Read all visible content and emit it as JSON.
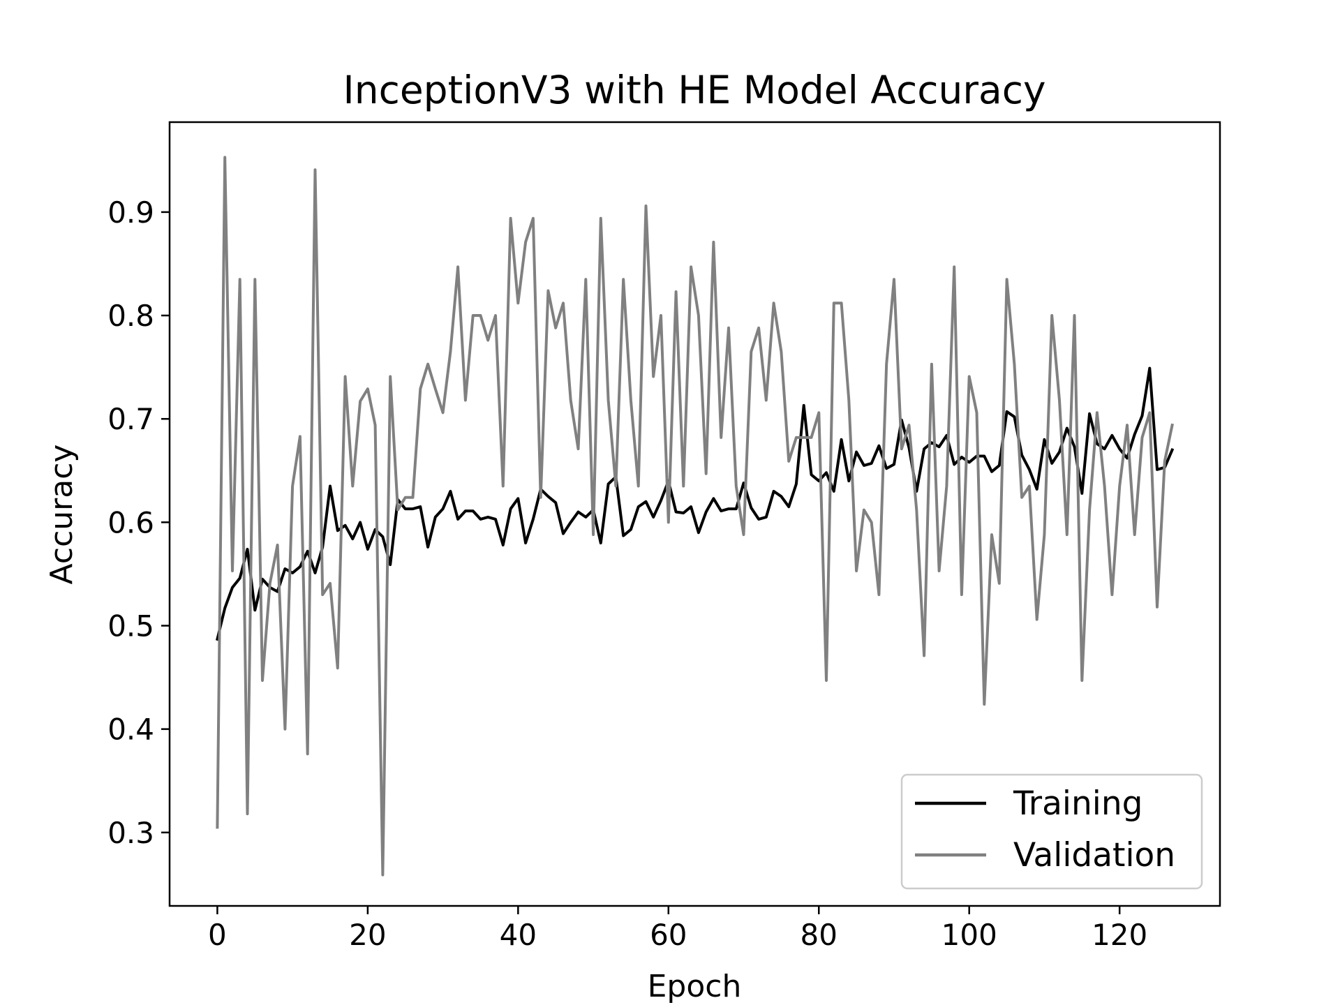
{
  "chart_data": {
    "type": "line",
    "title": "InceptionV3 with HE Model Accuracy",
    "xlabel": "Epoch",
    "ylabel": "Accuracy",
    "xlim": [
      -6.35,
      133.35
    ],
    "ylim": [
      0.229,
      0.987
    ],
    "xticks": [
      0,
      20,
      40,
      60,
      80,
      100,
      120
    ],
    "yticks": [
      0.3,
      0.4,
      0.5,
      0.6,
      0.7,
      0.8,
      0.9
    ],
    "grid": false,
    "legend_position": "lower-right",
    "colors": {
      "Training": "#000000",
      "Validation": "#808080"
    },
    "series": [
      {
        "name": "Training",
        "values": [
          0.487,
          0.517,
          0.537,
          0.546,
          0.574,
          0.515,
          0.545,
          0.537,
          0.533,
          0.555,
          0.551,
          0.557,
          0.572,
          0.551,
          0.576,
          0.635,
          0.592,
          0.597,
          0.584,
          0.6,
          0.574,
          0.593,
          0.586,
          0.559,
          0.622,
          0.613,
          0.613,
          0.615,
          0.576,
          0.605,
          0.613,
          0.63,
          0.603,
          0.611,
          0.611,
          0.603,
          0.605,
          0.603,
          0.578,
          0.613,
          0.623,
          0.58,
          0.603,
          0.632,
          0.625,
          0.619,
          0.589,
          0.6,
          0.61,
          0.605,
          0.612,
          0.58,
          0.637,
          0.644,
          0.587,
          0.593,
          0.615,
          0.62,
          0.605,
          0.621,
          0.64,
          0.61,
          0.609,
          0.615,
          0.59,
          0.61,
          0.623,
          0.611,
          0.613,
          0.613,
          0.638,
          0.614,
          0.603,
          0.605,
          0.63,
          0.625,
          0.615,
          0.637,
          0.713,
          0.646,
          0.64,
          0.648,
          0.63,
          0.68,
          0.64,
          0.668,
          0.655,
          0.657,
          0.674,
          0.652,
          0.656,
          0.699,
          0.672,
          0.63,
          0.671,
          0.677,
          0.673,
          0.684,
          0.656,
          0.663,
          0.658,
          0.664,
          0.664,
          0.649,
          0.655,
          0.707,
          0.702,
          0.665,
          0.651,
          0.632,
          0.68,
          0.657,
          0.668,
          0.691,
          0.673,
          0.628,
          0.705,
          0.676,
          0.671,
          0.684,
          0.671,
          0.662,
          0.685,
          0.703,
          0.749,
          0.651,
          0.653,
          0.67
        ]
      },
      {
        "name": "Validation",
        "values": [
          0.305,
          0.953,
          0.553,
          0.835,
          0.318,
          0.835,
          0.447,
          0.541,
          0.578,
          0.4,
          0.635,
          0.683,
          0.376,
          0.941,
          0.53,
          0.541,
          0.459,
          0.741,
          0.635,
          0.717,
          0.729,
          0.694,
          0.259,
          0.741,
          0.612,
          0.624,
          0.624,
          0.729,
          0.753,
          0.729,
          0.706,
          0.765,
          0.847,
          0.718,
          0.8,
          0.8,
          0.776,
          0.8,
          0.635,
          0.894,
          0.812,
          0.871,
          0.894,
          0.624,
          0.824,
          0.788,
          0.812,
          0.718,
          0.671,
          0.835,
          0.588,
          0.894,
          0.718,
          0.635,
          0.835,
          0.718,
          0.635,
          0.906,
          0.741,
          0.8,
          0.6,
          0.823,
          0.635,
          0.847,
          0.8,
          0.647,
          0.871,
          0.682,
          0.788,
          0.635,
          0.588,
          0.765,
          0.788,
          0.718,
          0.812,
          0.765,
          0.659,
          0.682,
          0.682,
          0.682,
          0.706,
          0.447,
          0.812,
          0.812,
          0.718,
          0.553,
          0.612,
          0.6,
          0.53,
          0.753,
          0.835,
          0.671,
          0.694,
          0.612,
          0.471,
          0.753,
          0.553,
          0.635,
          0.847,
          0.53,
          0.741,
          0.706,
          0.424,
          0.588,
          0.541,
          0.835,
          0.753,
          0.624,
          0.635,
          0.506,
          0.588,
          0.8,
          0.718,
          0.588,
          0.8,
          0.447,
          0.612,
          0.706,
          0.635,
          0.53,
          0.635,
          0.694,
          0.588,
          0.682,
          0.706,
          0.518,
          0.659,
          0.694
        ]
      }
    ]
  }
}
